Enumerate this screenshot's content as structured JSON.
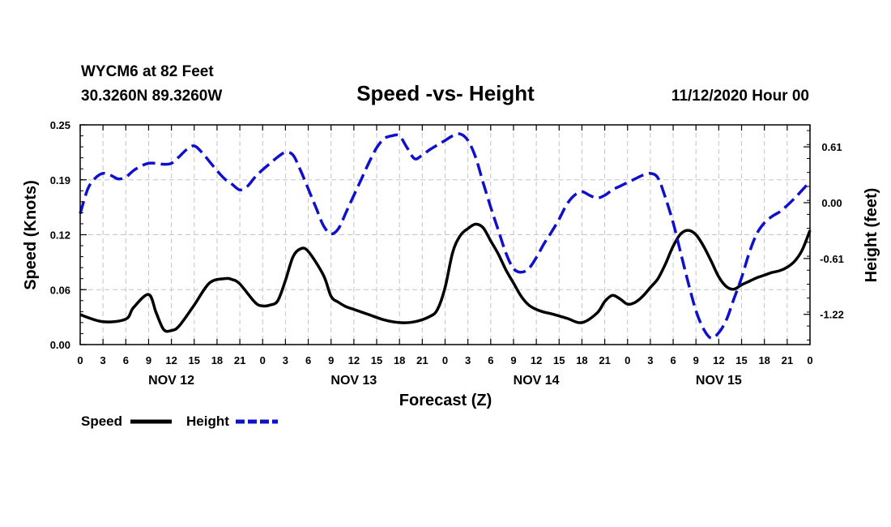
{
  "header": {
    "station": "WYCM6 at 82 Feet",
    "coords": "30.3260N 89.3260W",
    "title": "Speed -vs- Height",
    "run": "11/12/2020 Hour 00"
  },
  "chart_data": {
    "type": "line",
    "title": "Speed -vs- Height",
    "xlabel": "Forecast (Z)",
    "ylabel_left": "Speed (Knots)",
    "ylabel_right": "Height (feet)",
    "x_ticks": [
      "0",
      "3",
      "6",
      "9",
      "12",
      "15",
      "18",
      "21",
      "0",
      "3",
      "6",
      "9",
      "12",
      "15",
      "18",
      "21",
      "0",
      "3",
      "6",
      "9",
      "12",
      "15",
      "18",
      "21",
      "0",
      "3",
      "6",
      "9",
      "12",
      "15",
      "18",
      "21",
      "0"
    ],
    "date_labels": [
      {
        "label": "NOV 12",
        "hour": 12
      },
      {
        "label": "NOV 13",
        "hour": 36
      },
      {
        "label": "NOV 14",
        "hour": 60
      },
      {
        "label": "NOV 15",
        "hour": 84
      }
    ],
    "xlim": [
      0,
      96
    ],
    "ylim_left": [
      0,
      0.25
    ],
    "left_ticks": [
      "0.00",
      "0.06",
      "0.12",
      "0.19",
      "0.25"
    ],
    "left_tick_values": [
      0,
      0.0625,
      0.125,
      0.1875,
      0.25
    ],
    "ylim_right": [
      -1.55,
      0.85
    ],
    "right_ticks": [
      "0.61",
      "0.00",
      "-0.61",
      "-1.22"
    ],
    "right_tick_values": [
      0.61,
      0.0,
      -0.61,
      -1.22
    ],
    "grid": true,
    "legend": [
      {
        "name": "Speed",
        "color": "#000000",
        "style": "solid"
      },
      {
        "name": "Height",
        "color": "#1010cc",
        "style": "dashed"
      }
    ],
    "series": [
      {
        "name": "Speed",
        "axis": "left",
        "color": "#000000",
        "style": "solid",
        "x": [
          0,
          3,
          6,
          7,
          9,
          10,
          11,
          12,
          13,
          15,
          17,
          19,
          20,
          21,
          23,
          24,
          25,
          26,
          27,
          28,
          29,
          30,
          32,
          33,
          34,
          35,
          36,
          38,
          40,
          42,
          44,
          46,
          47,
          48,
          49,
          50,
          51,
          52,
          53,
          54,
          55,
          56,
          57,
          58,
          59,
          60,
          61,
          62,
          64,
          66,
          68,
          69,
          70,
          71,
          72,
          73,
          74,
          75,
          76,
          77,
          78,
          79,
          80,
          81,
          82,
          83,
          84,
          85,
          86,
          87,
          88,
          89,
          90,
          91,
          92,
          93,
          94,
          95,
          96
        ],
        "y": [
          0.034,
          0.026,
          0.029,
          0.042,
          0.057,
          0.036,
          0.017,
          0.016,
          0.021,
          0.045,
          0.07,
          0.075,
          0.074,
          0.069,
          0.048,
          0.044,
          0.045,
          0.05,
          0.073,
          0.1,
          0.109,
          0.106,
          0.079,
          0.055,
          0.048,
          0.043,
          0.04,
          0.034,
          0.028,
          0.025,
          0.026,
          0.032,
          0.04,
          0.065,
          0.105,
          0.124,
          0.132,
          0.137,
          0.133,
          0.118,
          0.103,
          0.085,
          0.07,
          0.055,
          0.045,
          0.04,
          0.037,
          0.035,
          0.03,
          0.025,
          0.036,
          0.049,
          0.056,
          0.052,
          0.046,
          0.048,
          0.055,
          0.065,
          0.075,
          0.092,
          0.112,
          0.126,
          0.13,
          0.125,
          0.112,
          0.095,
          0.077,
          0.066,
          0.063,
          0.068,
          0.072,
          0.076,
          0.079,
          0.082,
          0.084,
          0.088,
          0.095,
          0.108,
          0.13
        ]
      },
      {
        "name": "Height",
        "axis": "right",
        "color": "#1010cc",
        "style": "dashed",
        "x": [
          0,
          1,
          2,
          3,
          4,
          5,
          6,
          7,
          8,
          9,
          10,
          11,
          12,
          13,
          14,
          15,
          16,
          17,
          18,
          19,
          20,
          21,
          22,
          23,
          24,
          25,
          26,
          27,
          28,
          29,
          30,
          31,
          32,
          33,
          34,
          35,
          36,
          37,
          38,
          39,
          40,
          41,
          42,
          43,
          44,
          45,
          46,
          47,
          48,
          49,
          50,
          51,
          52,
          53,
          54,
          55,
          56,
          57,
          58,
          59,
          60,
          61,
          62,
          63,
          64,
          65,
          66,
          67,
          68,
          69,
          70,
          71,
          72,
          73,
          74,
          75,
          76,
          77,
          78,
          79,
          80,
          81,
          82,
          83,
          84,
          85,
          86,
          87,
          88,
          89,
          90,
          91,
          92,
          93,
          94,
          95,
          96
        ],
        "y": [
          -0.12,
          0.15,
          0.27,
          0.32,
          0.3,
          0.26,
          0.28,
          0.35,
          0.4,
          0.43,
          0.43,
          0.42,
          0.43,
          0.5,
          0.58,
          0.62,
          0.55,
          0.45,
          0.35,
          0.26,
          0.2,
          0.14,
          0.18,
          0.28,
          0.36,
          0.43,
          0.5,
          0.55,
          0.52,
          0.35,
          0.15,
          -0.05,
          -0.25,
          -0.34,
          -0.28,
          -0.1,
          0.08,
          0.26,
          0.44,
          0.6,
          0.7,
          0.73,
          0.73,
          0.6,
          0.48,
          0.52,
          0.58,
          0.63,
          0.68,
          0.73,
          0.75,
          0.68,
          0.5,
          0.22,
          -0.05,
          -0.3,
          -0.55,
          -0.72,
          -0.76,
          -0.72,
          -0.6,
          -0.45,
          -0.32,
          -0.18,
          -0.02,
          0.08,
          0.12,
          0.08,
          0.05,
          0.08,
          0.14,
          0.18,
          0.22,
          0.26,
          0.3,
          0.32,
          0.27,
          0.05,
          -0.22,
          -0.55,
          -0.88,
          -1.18,
          -1.38,
          -1.48,
          -1.42,
          -1.28,
          -1.05,
          -0.82,
          -0.55,
          -0.34,
          -0.22,
          -0.15,
          -0.1,
          -0.03,
          0.05,
          0.14,
          0.23
        ]
      }
    ]
  }
}
